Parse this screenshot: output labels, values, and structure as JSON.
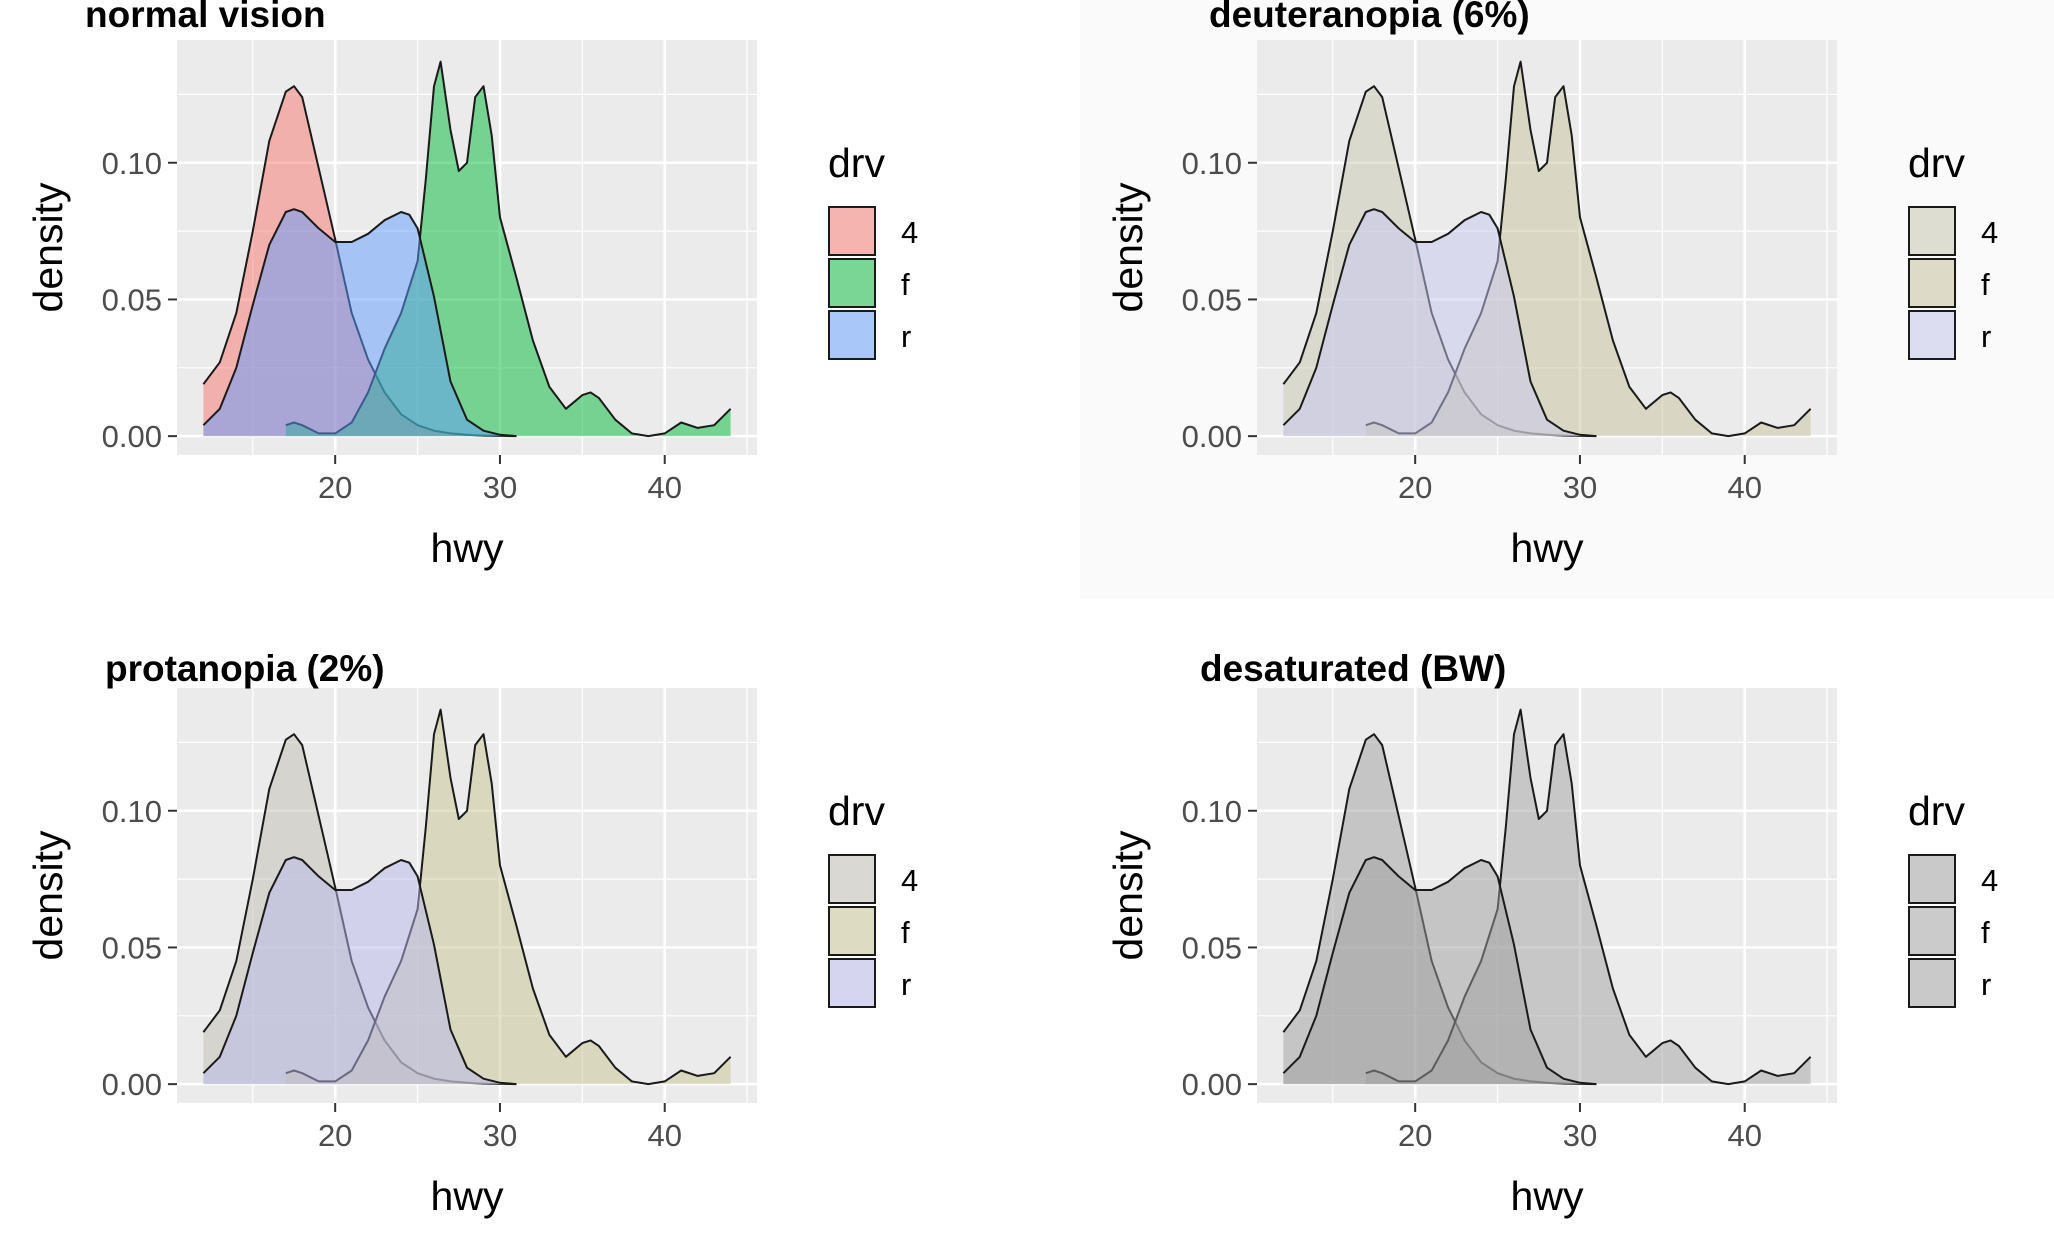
{
  "chart_data": [
    {
      "type": "area",
      "title": "normal vision",
      "xlabel": "hwy",
      "ylabel": "density",
      "xlim": [
        10.4,
        45.6
      ],
      "ylim": [
        -0.0069,
        0.1449
      ],
      "x_ticks": [
        20,
        30,
        40
      ],
      "x_tick_labels": [
        "20",
        "30",
        "40"
      ],
      "y_ticks": [
        0,
        0.05,
        0.1
      ],
      "y_tick_labels": [
        "0.00",
        "0.05",
        "0.10"
      ],
      "grid": true,
      "legend": {
        "title": "drv",
        "position": "right",
        "entries": [
          "4",
          "f",
          "r"
        ]
      },
      "colors": [
        "#F8766D",
        "#00BA38",
        "#619CFF"
      ],
      "panel_bg": "#EBEBEB",
      "plot_bg": "#FFFFFF",
      "series": [
        {
          "name": "4",
          "x": [
            12,
            13,
            14,
            15,
            16,
            17,
            17.5,
            18,
            19,
            20,
            21,
            22,
            23,
            24,
            25,
            26,
            27,
            28,
            28.5,
            29,
            30,
            31
          ],
          "y": [
            0.019,
            0.027,
            0.045,
            0.075,
            0.108,
            0.126,
            0.128,
            0.124,
            0.098,
            0.072,
            0.045,
            0.028,
            0.016,
            0.008,
            0.004,
            0.002,
            0.001,
            0.0005,
            0.0003,
            0.0002,
            0.0001,
            0
          ]
        },
        {
          "name": "f",
          "x": [
            17,
            17.5,
            18,
            19,
            20,
            21,
            22,
            23,
            24,
            25,
            25.5,
            26,
            26.4,
            27,
            27.5,
            28,
            28.5,
            29,
            29.5,
            30,
            31,
            32,
            33,
            34,
            35,
            35.5,
            36,
            37,
            38,
            39,
            40,
            41,
            42,
            43,
            44
          ],
          "y": [
            0.004,
            0.005,
            0.004,
            0.001,
            0.001,
            0.005,
            0.016,
            0.032,
            0.045,
            0.064,
            0.094,
            0.128,
            0.137,
            0.112,
            0.097,
            0.1,
            0.124,
            0.128,
            0.11,
            0.08,
            0.058,
            0.035,
            0.018,
            0.01,
            0.015,
            0.016,
            0.014,
            0.006,
            0.001,
            0,
            0.001,
            0.005,
            0.003,
            0.004,
            0.01
          ]
        },
        {
          "name": "r",
          "x": [
            12,
            13,
            14,
            15,
            16,
            17,
            17.5,
            18,
            19,
            20,
            21,
            22,
            23,
            24,
            24.5,
            25,
            26,
            27,
            28,
            29,
            30,
            31
          ],
          "y": [
            0.004,
            0.01,
            0.025,
            0.048,
            0.07,
            0.082,
            0.083,
            0.082,
            0.076,
            0.071,
            0.071,
            0.074,
            0.079,
            0.082,
            0.081,
            0.076,
            0.051,
            0.02,
            0.006,
            0.002,
            0.0005,
            0
          ]
        }
      ]
    },
    {
      "type": "area",
      "title": "deuteranopia (6%)",
      "xlabel": "hwy",
      "ylabel": "density",
      "xlim": [
        10.4,
        45.6
      ],
      "ylim": [
        -0.0069,
        0.1449
      ],
      "x_ticks": [
        20,
        30,
        40
      ],
      "x_tick_labels": [
        "20",
        "30",
        "40"
      ],
      "y_ticks": [
        0,
        0.05,
        0.1
      ],
      "y_tick_labels": [
        "0.00",
        "0.05",
        "0.10"
      ],
      "grid": true,
      "legend": {
        "title": "drv",
        "position": "right",
        "entries": [
          "4",
          "f",
          "r"
        ]
      },
      "colors": [
        "#C9C7B2",
        "#C7C49B",
        "#C8C8F2"
      ],
      "panel_bg": "#EBEBEB",
      "plot_bg": "#FAFAFA",
      "series": [
        {
          "name": "4",
          "x": [
            12,
            13,
            14,
            15,
            16,
            17,
            17.5,
            18,
            19,
            20,
            21,
            22,
            23,
            24,
            25,
            26,
            27,
            28,
            28.5,
            29,
            30,
            31
          ],
          "y": [
            0.019,
            0.027,
            0.045,
            0.075,
            0.108,
            0.126,
            0.128,
            0.124,
            0.098,
            0.072,
            0.045,
            0.028,
            0.016,
            0.008,
            0.004,
            0.002,
            0.001,
            0.0005,
            0.0003,
            0.0002,
            0.0001,
            0
          ]
        },
        {
          "name": "f",
          "x": [
            17,
            17.5,
            18,
            19,
            20,
            21,
            22,
            23,
            24,
            25,
            25.5,
            26,
            26.4,
            27,
            27.5,
            28,
            28.5,
            29,
            29.5,
            30,
            31,
            32,
            33,
            34,
            35,
            35.5,
            36,
            37,
            38,
            39,
            40,
            41,
            42,
            43,
            44
          ],
          "y": [
            0.004,
            0.005,
            0.004,
            0.001,
            0.001,
            0.005,
            0.016,
            0.032,
            0.045,
            0.064,
            0.094,
            0.128,
            0.137,
            0.112,
            0.097,
            0.1,
            0.124,
            0.128,
            0.11,
            0.08,
            0.058,
            0.035,
            0.018,
            0.01,
            0.015,
            0.016,
            0.014,
            0.006,
            0.001,
            0,
            0.001,
            0.005,
            0.003,
            0.004,
            0.01
          ]
        },
        {
          "name": "r",
          "x": [
            12,
            13,
            14,
            15,
            16,
            17,
            17.5,
            18,
            19,
            20,
            21,
            22,
            23,
            24,
            24.5,
            25,
            26,
            27,
            28,
            29,
            30,
            31
          ],
          "y": [
            0.004,
            0.01,
            0.025,
            0.048,
            0.07,
            0.082,
            0.083,
            0.082,
            0.076,
            0.071,
            0.071,
            0.074,
            0.079,
            0.082,
            0.081,
            0.076,
            0.051,
            0.02,
            0.006,
            0.002,
            0.0005,
            0
          ]
        }
      ]
    },
    {
      "type": "area",
      "title": "protanopia (2%)",
      "xlabel": "hwy",
      "ylabel": "density",
      "xlim": [
        10.4,
        45.6
      ],
      "ylim": [
        -0.0069,
        0.1449
      ],
      "x_ticks": [
        20,
        30,
        40
      ],
      "x_tick_labels": [
        "20",
        "30",
        "40"
      ],
      "y_ticks": [
        0,
        0.05,
        0.1
      ],
      "y_tick_labels": [
        "0.00",
        "0.05",
        "0.10"
      ],
      "grid": true,
      "legend": {
        "title": "drv",
        "position": "right",
        "entries": [
          "4",
          "f",
          "r"
        ]
      },
      "colors": [
        "#BFBDB1",
        "#C8C491",
        "#B8B8EC"
      ],
      "panel_bg": "#EBEBEB",
      "plot_bg": "#FFFFFF",
      "series": [
        {
          "name": "4",
          "x": [
            12,
            13,
            14,
            15,
            16,
            17,
            17.5,
            18,
            19,
            20,
            21,
            22,
            23,
            24,
            25,
            26,
            27,
            28,
            28.5,
            29,
            30,
            31
          ],
          "y": [
            0.019,
            0.027,
            0.045,
            0.075,
            0.108,
            0.126,
            0.128,
            0.124,
            0.098,
            0.072,
            0.045,
            0.028,
            0.016,
            0.008,
            0.004,
            0.002,
            0.001,
            0.0005,
            0.0003,
            0.0002,
            0.0001,
            0
          ]
        },
        {
          "name": "f",
          "x": [
            17,
            17.5,
            18,
            19,
            20,
            21,
            22,
            23,
            24,
            25,
            25.5,
            26,
            26.4,
            27,
            27.5,
            28,
            28.5,
            29,
            29.5,
            30,
            31,
            32,
            33,
            34,
            35,
            35.5,
            36,
            37,
            38,
            39,
            40,
            41,
            42,
            43,
            44
          ],
          "y": [
            0.004,
            0.005,
            0.004,
            0.001,
            0.001,
            0.005,
            0.016,
            0.032,
            0.045,
            0.064,
            0.094,
            0.128,
            0.137,
            0.112,
            0.097,
            0.1,
            0.124,
            0.128,
            0.11,
            0.08,
            0.058,
            0.035,
            0.018,
            0.01,
            0.015,
            0.016,
            0.014,
            0.006,
            0.001,
            0,
            0.001,
            0.005,
            0.003,
            0.004,
            0.01
          ]
        },
        {
          "name": "r",
          "x": [
            12,
            13,
            14,
            15,
            16,
            17,
            17.5,
            18,
            19,
            20,
            21,
            22,
            23,
            24,
            24.5,
            25,
            26,
            27,
            28,
            29,
            30,
            31
          ],
          "y": [
            0.004,
            0.01,
            0.025,
            0.048,
            0.07,
            0.082,
            0.083,
            0.082,
            0.076,
            0.071,
            0.071,
            0.074,
            0.079,
            0.082,
            0.081,
            0.076,
            0.051,
            0.02,
            0.006,
            0.002,
            0.0005,
            0
          ]
        }
      ]
    },
    {
      "type": "area",
      "title": "desaturated (BW)",
      "xlabel": "hwy",
      "ylabel": "density",
      "xlim": [
        10.4,
        45.6
      ],
      "ylim": [
        -0.0069,
        0.1449
      ],
      "x_ticks": [
        20,
        30,
        40
      ],
      "x_tick_labels": [
        "20",
        "30",
        "40"
      ],
      "y_ticks": [
        0,
        0.05,
        0.1
      ],
      "y_tick_labels": [
        "0.00",
        "0.05",
        "0.10"
      ],
      "grid": true,
      "legend": {
        "title": "drv",
        "position": "right",
        "entries": [
          "4",
          "f",
          "r"
        ]
      },
      "colors": [
        "#9F9F9F",
        "#A3A3A3",
        "#A0A0A0"
      ],
      "panel_bg": "#EBEBEB",
      "plot_bg": "#FFFFFF",
      "series": [
        {
          "name": "4",
          "x": [
            12,
            13,
            14,
            15,
            16,
            17,
            17.5,
            18,
            19,
            20,
            21,
            22,
            23,
            24,
            25,
            26,
            27,
            28,
            28.5,
            29,
            30,
            31
          ],
          "y": [
            0.019,
            0.027,
            0.045,
            0.075,
            0.108,
            0.126,
            0.128,
            0.124,
            0.098,
            0.072,
            0.045,
            0.028,
            0.016,
            0.008,
            0.004,
            0.002,
            0.001,
            0.0005,
            0.0003,
            0.0002,
            0.0001,
            0
          ]
        },
        {
          "name": "f",
          "x": [
            17,
            17.5,
            18,
            19,
            20,
            21,
            22,
            23,
            24,
            25,
            25.5,
            26,
            26.4,
            27,
            27.5,
            28,
            28.5,
            29,
            29.5,
            30,
            31,
            32,
            33,
            34,
            35,
            35.5,
            36,
            37,
            38,
            39,
            40,
            41,
            42,
            43,
            44
          ],
          "y": [
            0.004,
            0.005,
            0.004,
            0.001,
            0.001,
            0.005,
            0.016,
            0.032,
            0.045,
            0.064,
            0.094,
            0.128,
            0.137,
            0.112,
            0.097,
            0.1,
            0.124,
            0.128,
            0.11,
            0.08,
            0.058,
            0.035,
            0.018,
            0.01,
            0.015,
            0.016,
            0.014,
            0.006,
            0.001,
            0,
            0.001,
            0.005,
            0.003,
            0.004,
            0.01
          ]
        },
        {
          "name": "r",
          "x": [
            12,
            13,
            14,
            15,
            16,
            17,
            17.5,
            18,
            19,
            20,
            21,
            22,
            23,
            24,
            24.5,
            25,
            26,
            27,
            28,
            29,
            30,
            31
          ],
          "y": [
            0.004,
            0.01,
            0.025,
            0.048,
            0.07,
            0.082,
            0.083,
            0.082,
            0.076,
            0.071,
            0.071,
            0.074,
            0.079,
            0.082,
            0.081,
            0.076,
            0.051,
            0.02,
            0.006,
            0.002,
            0.0005,
            0
          ]
        }
      ]
    }
  ]
}
